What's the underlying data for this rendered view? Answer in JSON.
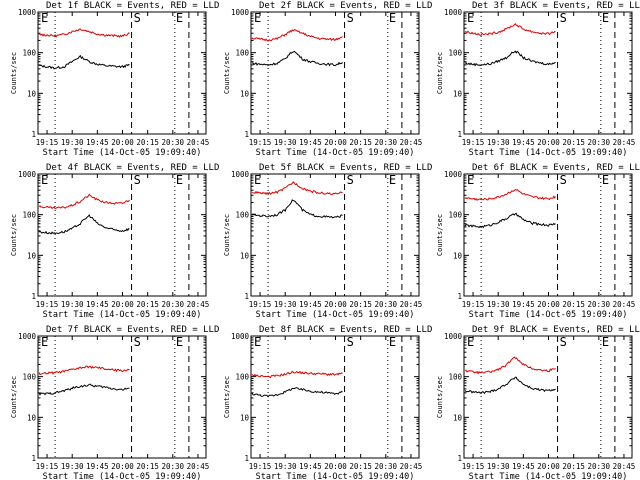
{
  "figure": {
    "panel_title_suffix": " BLACK = Events, RED = LLD",
    "xlabel": "Start Time (14-Oct-05 19:09:40)",
    "ylabel": "Counts/sec",
    "time_ticks": [
      "19:15",
      "19:30",
      "19:45",
      "20:00",
      "20:15",
      "20:30",
      "20:45"
    ],
    "count_ticks": [
      "1",
      "10",
      "100",
      "1000"
    ],
    "markers": [
      "E",
      "S",
      "E"
    ],
    "colors": {
      "events": "#000000",
      "lld": "#e00000"
    }
  },
  "chart_data": [
    {
      "type": "line",
      "title": "Det 1f",
      "xlim": [
        19.16,
        20.83
      ],
      "ylim": [
        1,
        1000
      ],
      "yscale": "log",
      "series": [
        {
          "name": "BLACK = Events",
          "color": "#000000",
          "x": [
            19.17,
            19.25,
            19.33,
            19.42,
            19.5,
            19.58,
            19.67,
            19.75,
            19.83,
            19.92,
            20.0,
            20.07
          ],
          "y": [
            48,
            45,
            42,
            45,
            60,
            80,
            60,
            52,
            48,
            46,
            45,
            50
          ]
        },
        {
          "name": "RED = LLD",
          "color": "#e00000",
          "x": [
            19.17,
            19.25,
            19.33,
            19.42,
            19.5,
            19.58,
            19.67,
            19.75,
            19.83,
            19.92,
            20.0,
            20.07
          ],
          "y": [
            280,
            270,
            260,
            280,
            330,
            380,
            330,
            290,
            270,
            260,
            255,
            300
          ]
        }
      ]
    },
    {
      "type": "line",
      "title": "Det 2f",
      "xlim": [
        19.16,
        20.83
      ],
      "ylim": [
        1,
        1000
      ],
      "yscale": "log",
      "series": [
        {
          "name": "BLACK = Events",
          "color": "#000000",
          "x": [
            19.17,
            19.25,
            19.33,
            19.42,
            19.5,
            19.58,
            19.67,
            19.75,
            19.83,
            19.92,
            20.0,
            20.07
          ],
          "y": [
            55,
            52,
            50,
            55,
            70,
            110,
            70,
            60,
            55,
            52,
            50,
            58
          ]
        },
        {
          "name": "RED = LLD",
          "color": "#e00000",
          "x": [
            19.17,
            19.25,
            19.33,
            19.42,
            19.5,
            19.58,
            19.67,
            19.75,
            19.83,
            19.92,
            20.0,
            20.07
          ],
          "y": [
            230,
            215,
            205,
            220,
            280,
            360,
            300,
            250,
            225,
            215,
            210,
            250
          ]
        }
      ]
    },
    {
      "type": "line",
      "title": "Det 3f",
      "xlim": [
        19.16,
        20.83
      ],
      "ylim": [
        1,
        1000
      ],
      "yscale": "log",
      "series": [
        {
          "name": "BLACK = Events",
          "color": "#000000",
          "x": [
            19.17,
            19.25,
            19.33,
            19.42,
            19.5,
            19.58,
            19.67,
            19.75,
            19.83,
            19.92,
            20.0,
            20.07
          ],
          "y": [
            55,
            52,
            50,
            53,
            62,
            75,
            110,
            75,
            62,
            56,
            52,
            58
          ]
        },
        {
          "name": "RED = LLD",
          "color": "#e00000",
          "x": [
            19.17,
            19.25,
            19.33,
            19.42,
            19.5,
            19.58,
            19.67,
            19.75,
            19.83,
            19.92,
            20.0,
            20.07
          ],
          "y": [
            330,
            300,
            280,
            290,
            320,
            380,
            500,
            380,
            330,
            300,
            290,
            330
          ]
        }
      ]
    },
    {
      "type": "line",
      "title": "Det 4f",
      "xlim": [
        19.16,
        20.83
      ],
      "ylim": [
        1,
        1000
      ],
      "yscale": "log",
      "series": [
        {
          "name": "BLACK = Events",
          "color": "#000000",
          "x": [
            19.17,
            19.25,
            19.33,
            19.42,
            19.5,
            19.58,
            19.67,
            19.75,
            19.83,
            19.92,
            20.0,
            20.07
          ],
          "y": [
            38,
            36,
            35,
            38,
            45,
            60,
            95,
            60,
            48,
            42,
            40,
            45
          ]
        },
        {
          "name": "RED = LLD",
          "color": "#e00000",
          "x": [
            19.17,
            19.25,
            19.33,
            19.42,
            19.5,
            19.58,
            19.67,
            19.75,
            19.83,
            19.92,
            20.0,
            20.07
          ],
          "y": [
            160,
            150,
            145,
            150,
            170,
            210,
            300,
            230,
            200,
            190,
            190,
            230
          ]
        }
      ]
    },
    {
      "type": "line",
      "title": "Det 5f",
      "xlim": [
        19.16,
        20.83
      ],
      "ylim": [
        1,
        1000
      ],
      "yscale": "log",
      "series": [
        {
          "name": "BLACK = Events",
          "color": "#000000",
          "x": [
            19.17,
            19.25,
            19.33,
            19.42,
            19.5,
            19.58,
            19.67,
            19.75,
            19.83,
            19.92,
            20.0,
            20.07
          ],
          "y": [
            100,
            95,
            92,
            100,
            130,
            230,
            130,
            100,
            92,
            88,
            85,
            95
          ]
        },
        {
          "name": "RED = LLD",
          "color": "#e00000",
          "x": [
            19.17,
            19.25,
            19.33,
            19.42,
            19.5,
            19.58,
            19.67,
            19.75,
            19.83,
            19.92,
            20.0,
            20.07
          ],
          "y": [
            360,
            340,
            330,
            360,
            440,
            620,
            450,
            380,
            345,
            330,
            320,
            350
          ]
        }
      ]
    },
    {
      "type": "line",
      "title": "Det 6f",
      "xlim": [
        19.16,
        20.83
      ],
      "ylim": [
        1,
        1000
      ],
      "yscale": "log",
      "series": [
        {
          "name": "BLACK = Events",
          "color": "#000000",
          "x": [
            19.17,
            19.25,
            19.33,
            19.42,
            19.5,
            19.58,
            19.67,
            19.75,
            19.83,
            19.92,
            20.0,
            20.07
          ],
          "y": [
            55,
            52,
            50,
            55,
            65,
            80,
            105,
            75,
            62,
            58,
            55,
            60
          ]
        },
        {
          "name": "RED = LLD",
          "color": "#e00000",
          "x": [
            19.17,
            19.25,
            19.33,
            19.42,
            19.5,
            19.58,
            19.67,
            19.75,
            19.83,
            19.92,
            20.0,
            20.07
          ],
          "y": [
            260,
            245,
            235,
            245,
            270,
            320,
            420,
            320,
            275,
            255,
            245,
            280
          ]
        }
      ]
    },
    {
      "type": "line",
      "title": "Det 7f",
      "xlim": [
        19.16,
        20.83
      ],
      "ylim": [
        1,
        1000
      ],
      "yscale": "log",
      "series": [
        {
          "name": "BLACK = Events",
          "color": "#000000",
          "x": [
            19.17,
            19.25,
            19.33,
            19.42,
            19.5,
            19.58,
            19.67,
            19.75,
            19.83,
            19.92,
            20.0,
            20.07
          ],
          "y": [
            38,
            38,
            40,
            45,
            52,
            58,
            62,
            58,
            55,
            50,
            48,
            52
          ]
        },
        {
          "name": "RED = LLD",
          "color": "#e00000",
          "x": [
            19.17,
            19.25,
            19.33,
            19.42,
            19.5,
            19.58,
            19.67,
            19.75,
            19.83,
            19.92,
            20.0,
            20.07
          ],
          "y": [
            120,
            122,
            125,
            135,
            150,
            165,
            175,
            165,
            155,
            145,
            140,
            150
          ]
        }
      ]
    },
    {
      "type": "line",
      "title": "Det 8f",
      "xlim": [
        19.16,
        20.83
      ],
      "ylim": [
        1,
        1000
      ],
      "yscale": "log",
      "series": [
        {
          "name": "BLACK = Events",
          "color": "#000000",
          "x": [
            19.17,
            19.25,
            19.33,
            19.42,
            19.5,
            19.58,
            19.67,
            19.75,
            19.83,
            19.92,
            20.0,
            20.07
          ],
          "y": [
            38,
            35,
            33,
            36,
            42,
            52,
            48,
            44,
            42,
            40,
            38,
            42
          ]
        },
        {
          "name": "RED = LLD",
          "color": "#e00000",
          "x": [
            19.17,
            19.25,
            19.33,
            19.42,
            19.5,
            19.58,
            19.67,
            19.75,
            19.83,
            19.92,
            20.0,
            20.07
          ],
          "y": [
            110,
            105,
            100,
            105,
            115,
            130,
            125,
            120,
            118,
            115,
            112,
            120
          ]
        }
      ]
    },
    {
      "type": "line",
      "title": "Det 9f",
      "xlim": [
        19.16,
        20.83
      ],
      "ylim": [
        1,
        1000
      ],
      "yscale": "log",
      "series": [
        {
          "name": "BLACK = Events",
          "color": "#000000",
          "x": [
            19.17,
            19.25,
            19.33,
            19.42,
            19.5,
            19.58,
            19.67,
            19.75,
            19.83,
            19.92,
            20.0,
            20.07
          ],
          "y": [
            45,
            42,
            40,
            43,
            50,
            65,
            95,
            65,
            52,
            47,
            45,
            50
          ]
        },
        {
          "name": "RED = LLD",
          "color": "#e00000",
          "x": [
            19.17,
            19.25,
            19.33,
            19.42,
            19.5,
            19.58,
            19.67,
            19.75,
            19.83,
            19.92,
            20.0,
            20.07
          ],
          "y": [
            140,
            130,
            125,
            130,
            150,
            190,
            300,
            200,
            160,
            145,
            140,
            160
          ]
        }
      ]
    }
  ]
}
